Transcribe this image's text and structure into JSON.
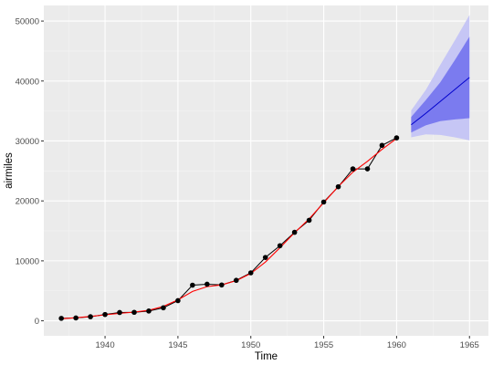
{
  "chart_data": {
    "type": "line",
    "xlabel": "Time",
    "ylabel": "airmiles",
    "xlim": [
      1935.8,
      1966.3
    ],
    "ylim": [
      -2500,
      52600
    ],
    "x_ticks": [
      1940,
      1945,
      1950,
      1955,
      1960,
      1965
    ],
    "y_ticks": [
      0,
      10000,
      20000,
      30000,
      40000,
      50000
    ],
    "grid": true,
    "series": [
      {
        "kind": "observed",
        "color": "#000000",
        "x": [
          1937,
          1938,
          1939,
          1940,
          1941,
          1942,
          1943,
          1944,
          1945,
          1946,
          1947,
          1948,
          1949,
          1950,
          1951,
          1952,
          1953,
          1954,
          1955,
          1956,
          1957,
          1958,
          1959,
          1960
        ],
        "y": [
          412,
          480,
          683,
          1052,
          1385,
          1418,
          1634,
          2178,
          3362,
          5948,
          6109,
          5981,
          6753,
          8003,
          10566,
          12528,
          14760,
          16769,
          19819,
          22362,
          25340,
          25343,
          29269,
          30514
        ]
      },
      {
        "kind": "fitted",
        "color": "#ff0000",
        "x": [
          1937,
          1938,
          1939,
          1940,
          1941,
          1942,
          1943,
          1944,
          1945,
          1946,
          1947,
          1948,
          1949,
          1950,
          1951,
          1952,
          1953,
          1954,
          1955,
          1956,
          1957,
          1958,
          1959,
          1960
        ],
        "y": [
          350,
          520,
          720,
          1000,
          1250,
          1450,
          1750,
          2400,
          3500,
          4900,
          5700,
          6000,
          6700,
          7900,
          9800,
          12200,
          14700,
          17000,
          19700,
          22400,
          24800,
          26600,
          28600,
          30400
        ]
      },
      {
        "kind": "forecast",
        "color": "#0000cc",
        "x": [
          1961,
          1962,
          1963,
          1964,
          1965
        ],
        "y": [
          32700,
          34600,
          36600,
          38600,
          40600
        ],
        "pi80": {
          "color": "#7b7bef",
          "lower": [
            31400,
            32600,
            33300,
            33600,
            33800
          ],
          "upper": [
            34000,
            36800,
            39800,
            43500,
            47400
          ]
        },
        "pi95": {
          "color": "#c6c6f5",
          "lower": [
            30600,
            31100,
            31000,
            30600,
            30100
          ],
          "upper": [
            35100,
            38500,
            42700,
            46800,
            51000
          ]
        }
      }
    ]
  }
}
